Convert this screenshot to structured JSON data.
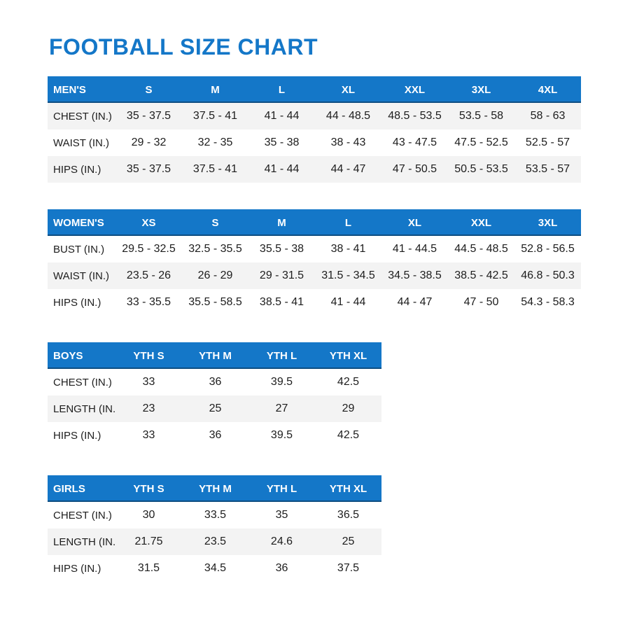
{
  "title": "FOOTBALL SIZE CHART",
  "colors": {
    "accent_blue": "#1477c8",
    "header_text": "#ffffff",
    "row_stripe": "#f3f3f3",
    "body_text": "#1d1d1d"
  },
  "tables": [
    {
      "group_label": "MEN'S",
      "size_headers": [
        "S",
        "M",
        "L",
        "XL",
        "XXL",
        "3XL",
        "4XL"
      ],
      "rows": [
        {
          "label": "CHEST (IN.)",
          "values": [
            "35 - 37.5",
            "37.5 - 41",
            "41 - 44",
            "44 - 48.5",
            "48.5 - 53.5",
            "53.5 - 58",
            "58 - 63"
          ]
        },
        {
          "label": "WAIST (IN.)",
          "values": [
            "29 - 32",
            "32 - 35",
            "35 - 38",
            "38 - 43",
            "43 - 47.5",
            "47.5 - 52.5",
            "52.5 - 57"
          ]
        },
        {
          "label": "HIPS (IN.)",
          "values": [
            "35 - 37.5",
            "37.5 - 41",
            "41 - 44",
            "44 - 47",
            "47 - 50.5",
            "50.5 - 53.5",
            "53.5 - 57"
          ]
        }
      ]
    },
    {
      "group_label": "WOMEN'S",
      "size_headers": [
        "XS",
        "S",
        "M",
        "L",
        "XL",
        "XXL",
        "3XL"
      ],
      "rows": [
        {
          "label": "BUST (IN.)",
          "values": [
            "29.5 - 32.5",
            "32.5 - 35.5",
            "35.5 - 38",
            "38 - 41",
            "41 - 44.5",
            "44.5 - 48.5",
            "52.8 - 56.5"
          ]
        },
        {
          "label": "WAIST (IN.)",
          "values": [
            "23.5 - 26",
            "26 - 29",
            "29 - 31.5",
            "31.5 - 34.5",
            "34.5 - 38.5",
            "38.5 - 42.5",
            "46.8 - 50.3"
          ]
        },
        {
          "label": "HIPS (IN.)",
          "values": [
            "33 - 35.5",
            "35.5 - 58.5",
            "38.5 - 41",
            "41 - 44",
            "44 - 47",
            "47 - 50",
            "54.3 - 58.3"
          ]
        }
      ]
    },
    {
      "group_label": "BOYS",
      "size_headers": [
        "YTH S",
        "YTH M",
        "YTH L",
        "YTH XL"
      ],
      "rows": [
        {
          "label": "CHEST (IN.)",
          "values": [
            "33",
            "36",
            "39.5",
            "42.5"
          ]
        },
        {
          "label": "LENGTH (IN.)",
          "values": [
            "23",
            "25",
            "27",
            "29"
          ]
        },
        {
          "label": "HIPS (IN.)",
          "values": [
            "33",
            "36",
            "39.5",
            "42.5"
          ]
        }
      ]
    },
    {
      "group_label": "GIRLS",
      "size_headers": [
        "YTH S",
        "YTH M",
        "YTH L",
        "YTH XL"
      ],
      "rows": [
        {
          "label": "CHEST (IN.)",
          "values": [
            "30",
            "33.5",
            "35",
            "36.5"
          ]
        },
        {
          "label": "LENGTH (IN.)",
          "values": [
            "21.75",
            "23.5",
            "24.6",
            "25"
          ]
        },
        {
          "label": "HIPS (IN.)",
          "values": [
            "31.5",
            "34.5",
            "36",
            "37.5"
          ]
        }
      ]
    }
  ]
}
